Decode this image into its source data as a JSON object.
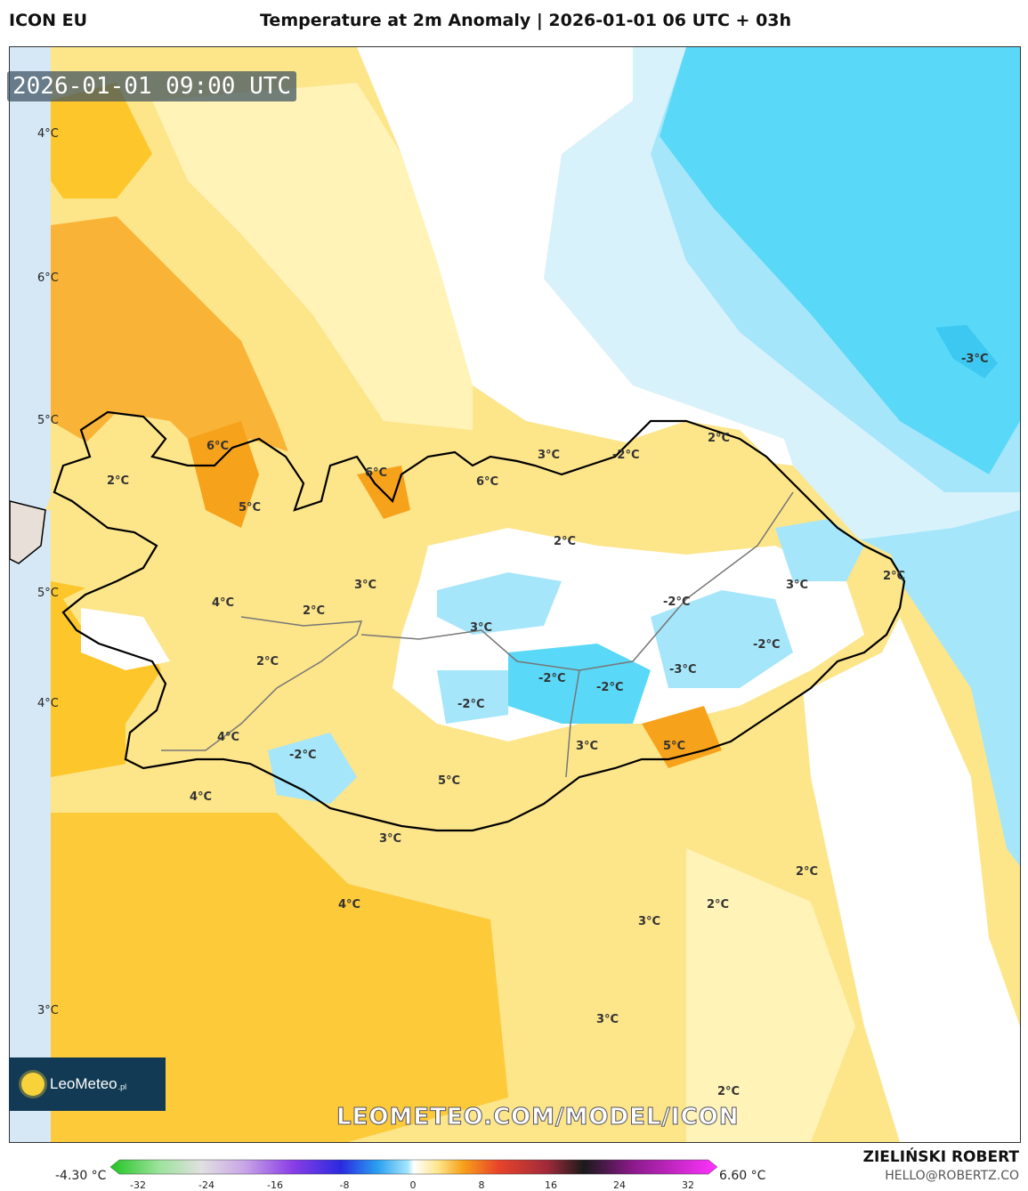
{
  "header": {
    "model": "ICON EU",
    "title": "Temperature at 2m Anomaly | 2026-01-01 06 UTC + 03h"
  },
  "map": {
    "valid_time": "2026-01-01 09:00 UTC",
    "lat_labels": [
      "4°C",
      "6°C",
      "5°C",
      "5°C",
      "4°C",
      "3°C"
    ],
    "contour_labels": [
      "6°C",
      "2°C",
      "5°C",
      "6°C",
      "6°C",
      "3°C",
      "-2°C",
      "2°C",
      "2°C",
      "3°C",
      "4°C",
      "2°C",
      "3°C",
      "2°C",
      "-2°C",
      "3°C",
      "2°C",
      "-2°C",
      "-3°C",
      "-2°C",
      "-2°C",
      "-2°C",
      "4°C",
      "-2°C",
      "5°C",
      "3°C",
      "5°C",
      "4°C",
      "3°C",
      "-3°C",
      "2°C",
      "4°C",
      "3°C",
      "2°C",
      "3°C",
      "2°C"
    ],
    "colors": {
      "anomaly_strong_warm": "#f7a21b",
      "anomaly_warm": "#fdc62a",
      "anomaly_mild": "#fde58a",
      "anomaly_light": "#fff3b8",
      "anomaly_neutral": "#ffffff",
      "anomaly_cool": "#d8f2fb",
      "anomaly_cold": "#a5e6fb",
      "anomaly_very_cold": "#5ad8f8",
      "land_outline": "#000000"
    }
  },
  "logo": {
    "brand": "LeoMeteo",
    "suffix": ".pl"
  },
  "watermark": "LEOMETEO.COM/MODEL/ICON",
  "colorbar": {
    "min_label": "-4.30 °C",
    "max_label": "6.60 °C",
    "ticks": [
      "-32",
      "-24",
      "-16",
      "-8",
      "0",
      "8",
      "16",
      "24",
      "32"
    ]
  },
  "footer": {
    "author": "ZIELIŃSKI ROBERT",
    "email": "HELLO@ROBERTZ.CO"
  }
}
